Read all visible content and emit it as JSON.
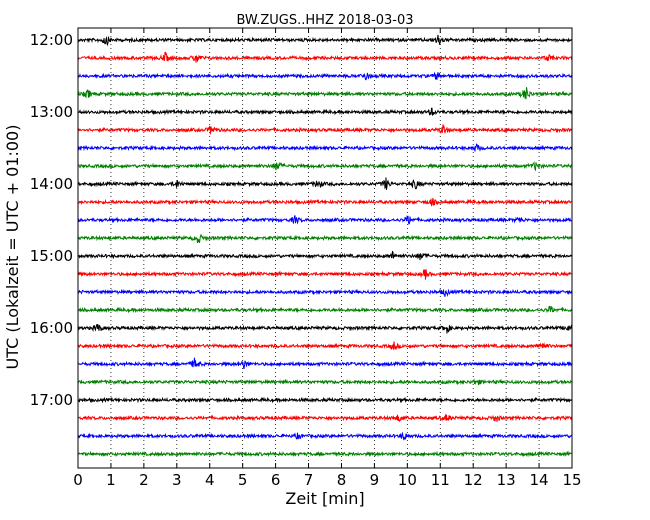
{
  "chart_data": {
    "type": "line",
    "title": "BW.ZUGS..HHZ 2018-03-03",
    "xlabel": "Zeit  [min]",
    "ylabel": "UTC (Lokalzeit = UTC + 01:00)",
    "xlim": [
      0,
      15
    ],
    "x_ticks": [
      "0",
      "1",
      "2",
      "3",
      "4",
      "5",
      "6",
      "7",
      "8",
      "9",
      "10",
      "11",
      "12",
      "13",
      "14",
      "15"
    ],
    "y_ticks": [
      "12:00",
      "13:00",
      "14:00",
      "15:00",
      "16:00",
      "17:00"
    ],
    "grid": "vertical dotted",
    "trace_colors": [
      "#000000",
      "#ff0000",
      "#0000ff",
      "#008000"
    ],
    "series": [
      {
        "start": "12:00",
        "color": "#000000",
        "events": [
          {
            "t": 0.85,
            "a": 6
          },
          {
            "t": 10.95,
            "a": 6
          }
        ]
      },
      {
        "start": "12:15",
        "color": "#ff0000",
        "events": [
          {
            "t": 2.65,
            "a": 5
          },
          {
            "t": 3.6,
            "a": 6
          },
          {
            "t": 14.3,
            "a": 4
          }
        ]
      },
      {
        "start": "12:30",
        "color": "#0000ff",
        "events": [
          {
            "t": 8.75,
            "a": 5
          },
          {
            "t": 10.9,
            "a": 4
          }
        ]
      },
      {
        "start": "12:45",
        "color": "#008000",
        "events": [
          {
            "t": 0.3,
            "a": 4
          },
          {
            "t": 13.6,
            "a": 8
          }
        ]
      },
      {
        "start": "13:00",
        "color": "#000000",
        "events": [
          {
            "t": 10.75,
            "a": 4
          }
        ]
      },
      {
        "start": "13:15",
        "color": "#ff0000",
        "events": [
          {
            "t": 4.05,
            "a": 5
          },
          {
            "t": 11.1,
            "a": 6
          }
        ]
      },
      {
        "start": "13:30",
        "color": "#0000ff",
        "events": [
          {
            "t": 12.1,
            "a": 4
          }
        ]
      },
      {
        "start": "13:45",
        "color": "#008000",
        "events": [
          {
            "t": 6.05,
            "a": 6
          },
          {
            "t": 13.9,
            "a": 4
          }
        ]
      },
      {
        "start": "14:00",
        "color": "#000000",
        "events": [
          {
            "t": 3.0,
            "a": 4
          },
          {
            "t": 7.3,
            "a": 5
          },
          {
            "t": 9.35,
            "a": 6
          },
          {
            "t": 10.25,
            "a": 5
          }
        ]
      },
      {
        "start": "14:15",
        "color": "#ff0000",
        "events": [
          {
            "t": 10.75,
            "a": 4
          }
        ]
      },
      {
        "start": "14:30",
        "color": "#0000ff",
        "events": [
          {
            "t": 6.6,
            "a": 4
          },
          {
            "t": 10.05,
            "a": 5
          },
          {
            "t": 13.4,
            "a": 3
          }
        ]
      },
      {
        "start": "14:45",
        "color": "#008000",
        "events": [
          {
            "t": 3.65,
            "a": 6
          }
        ]
      },
      {
        "start": "15:00",
        "color": "#000000",
        "events": [
          {
            "t": 9.55,
            "a": 4
          },
          {
            "t": 10.4,
            "a": 4
          }
        ]
      },
      {
        "start": "15:15",
        "color": "#ff0000",
        "events": [
          {
            "t": 10.55,
            "a": 5
          }
        ]
      },
      {
        "start": "15:30",
        "color": "#0000ff",
        "events": [
          {
            "t": 11.15,
            "a": 4
          }
        ]
      },
      {
        "start": "15:45",
        "color": "#008000",
        "events": [
          {
            "t": 14.35,
            "a": 4
          }
        ]
      },
      {
        "start": "16:00",
        "color": "#000000",
        "events": [
          {
            "t": 0.6,
            "a": 5
          },
          {
            "t": 11.2,
            "a": 5
          },
          {
            "t": 14.9,
            "a": 4
          }
        ]
      },
      {
        "start": "16:15",
        "color": "#ff0000",
        "events": [
          {
            "t": 9.6,
            "a": 4
          },
          {
            "t": 14.1,
            "a": 5
          }
        ]
      },
      {
        "start": "16:30",
        "color": "#0000ff",
        "events": [
          {
            "t": 3.55,
            "a": 6
          },
          {
            "t": 5.05,
            "a": 5
          }
        ]
      },
      {
        "start": "16:45",
        "color": "#008000",
        "events": [
          {
            "t": 12.1,
            "a": 3
          }
        ]
      },
      {
        "start": "17:00",
        "color": "#000000",
        "events": []
      },
      {
        "start": "17:15",
        "color": "#ff0000",
        "events": [
          {
            "t": 9.75,
            "a": 4
          },
          {
            "t": 11.2,
            "a": 4
          },
          {
            "t": 12.7,
            "a": 4
          }
        ]
      },
      {
        "start": "17:30",
        "color": "#0000ff",
        "events": [
          {
            "t": 6.7,
            "a": 3
          },
          {
            "t": 9.9,
            "a": 4
          }
        ]
      },
      {
        "start": "17:45",
        "color": "#008000",
        "events": []
      }
    ]
  }
}
